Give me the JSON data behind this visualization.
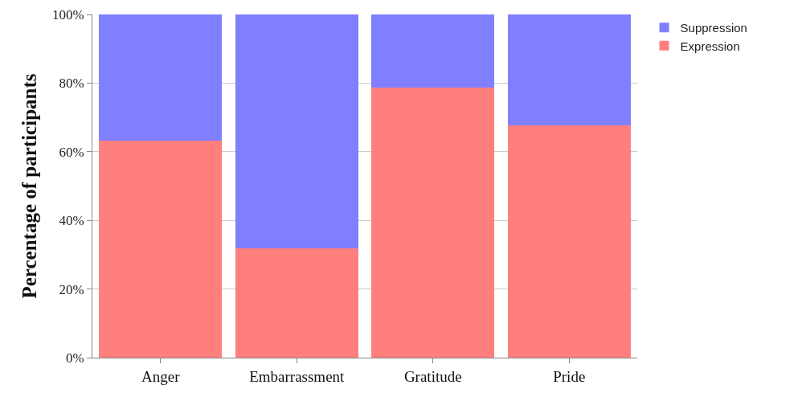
{
  "chart_data": {
    "type": "bar",
    "stacked": true,
    "ylabel": "Percentage of participants",
    "categories": [
      "Anger",
      "Embarrassment",
      "Gratitude",
      "Pride"
    ],
    "series": [
      {
        "name": "Expression",
        "color": "#ff7f7f",
        "values": [
          63.3,
          31.8,
          78.7,
          67.6
        ]
      },
      {
        "name": "Suppression",
        "color": "#7f7fff",
        "values": [
          36.7,
          68.2,
          21.3,
          32.4
        ]
      }
    ],
    "ylim": [
      0,
      100
    ],
    "yticks": [
      {
        "value": 0,
        "label": "0%"
      },
      {
        "value": 20,
        "label": "20%"
      },
      {
        "value": 40,
        "label": "40%"
      },
      {
        "value": 60,
        "label": "60%"
      },
      {
        "value": 80,
        "label": "80%"
      },
      {
        "value": 100,
        "label": "100%"
      }
    ],
    "grid": "y",
    "legend": "top right"
  }
}
